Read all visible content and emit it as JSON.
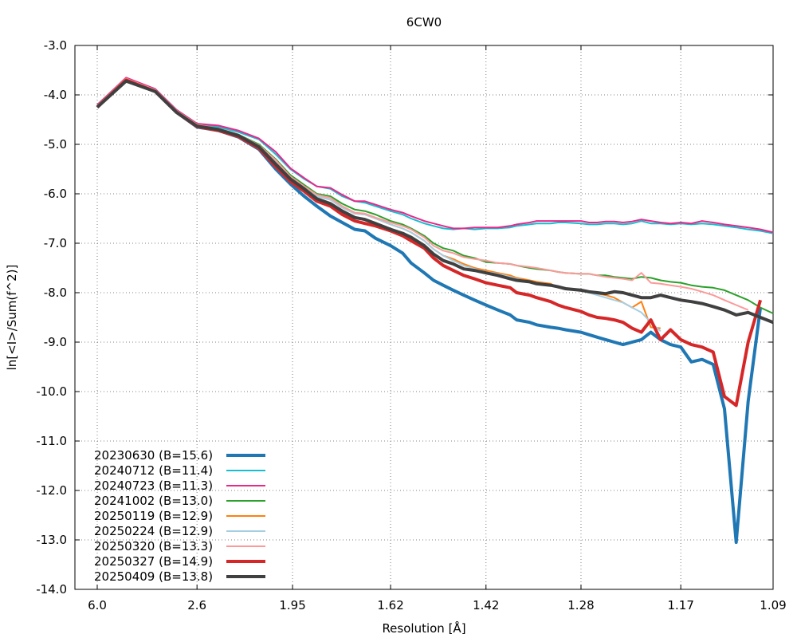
{
  "chart_data": {
    "type": "line",
    "title": "6CW0",
    "xlabel": "Resolution [Å]",
    "ylabel": "ln[<I>/Sum(f^2)]",
    "x_scale": "1/d^2",
    "xlim": [
      6.0,
      1.09
    ],
    "ylim": [
      -14.0,
      -3.0
    ],
    "x_ticks": [
      "6.0",
      "2.6",
      "1.95",
      "1.62",
      "1.42",
      "1.28",
      "1.17",
      "1.09"
    ],
    "x_tick_values": [
      6.0,
      2.6,
      1.95,
      1.62,
      1.42,
      1.28,
      1.17,
      1.09
    ],
    "y_ticks": [
      "-3.0",
      "-4.0",
      "-5.0",
      "-6.0",
      "-7.0",
      "-8.0",
      "-9.0",
      "-10.0",
      "-11.0",
      "-12.0",
      "-13.0",
      "-14.0"
    ],
    "y_tick_values": [
      -3,
      -4,
      -5,
      -6,
      -7,
      -8,
      -9,
      -10,
      -11,
      -12,
      -13,
      -14
    ],
    "grid": true,
    "legend_position": "bottom-left",
    "series": [
      {
        "name": "20230630 (B=15.6)",
        "color": "#1f77b4",
        "width": 4,
        "x": [
          6.0,
          4.0,
          3.2,
          2.85,
          2.6,
          2.4,
          2.25,
          2.12,
          2.03,
          1.96,
          1.9,
          1.85,
          1.8,
          1.76,
          1.72,
          1.69,
          1.66,
          1.62,
          1.59,
          1.57,
          1.54,
          1.52,
          1.5,
          1.48,
          1.46,
          1.44,
          1.42,
          1.4,
          1.38,
          1.37,
          1.35,
          1.34,
          1.32,
          1.31,
          1.3,
          1.28,
          1.27,
          1.26,
          1.25,
          1.24,
          1.23,
          1.22,
          1.21,
          1.2,
          1.19,
          1.18,
          1.17,
          1.16,
          1.15,
          1.14,
          1.13,
          1.12,
          1.11,
          1.1
        ],
        "y": [
          -4.25,
          -3.68,
          -3.93,
          -4.35,
          -4.65,
          -4.72,
          -4.85,
          -5.1,
          -5.5,
          -5.8,
          -6.05,
          -6.25,
          -6.45,
          -6.58,
          -6.72,
          -6.75,
          -6.9,
          -7.05,
          -7.2,
          -7.4,
          -7.6,
          -7.75,
          -7.85,
          -7.95,
          -8.05,
          -8.15,
          -8.25,
          -8.35,
          -8.45,
          -8.55,
          -8.6,
          -8.65,
          -8.7,
          -8.72,
          -8.75,
          -8.8,
          -8.85,
          -8.9,
          -8.95,
          -9.0,
          -9.05,
          -9.0,
          -8.95,
          -8.8,
          -8.95,
          -9.05,
          -9.1,
          -9.4,
          -9.35,
          -9.45,
          -10.35,
          -13.05,
          -10.2,
          -8.3
        ]
      },
      {
        "name": "20240712 (B=11.4)",
        "color": "#17becf",
        "width": 2,
        "x": [
          6.0,
          4.0,
          3.2,
          2.85,
          2.6,
          2.4,
          2.25,
          2.12,
          2.03,
          1.96,
          1.9,
          1.85,
          1.8,
          1.76,
          1.72,
          1.69,
          1.66,
          1.62,
          1.59,
          1.57,
          1.54,
          1.52,
          1.5,
          1.48,
          1.46,
          1.44,
          1.42,
          1.4,
          1.38,
          1.37,
          1.35,
          1.34,
          1.32,
          1.31,
          1.3,
          1.28,
          1.27,
          1.26,
          1.25,
          1.24,
          1.23,
          1.22,
          1.21,
          1.2,
          1.19,
          1.18,
          1.17,
          1.16,
          1.15,
          1.14,
          1.13,
          1.12,
          1.11,
          1.1,
          1.09
        ],
        "y": [
          -4.2,
          -3.66,
          -3.88,
          -4.3,
          -4.6,
          -4.65,
          -4.75,
          -4.9,
          -5.2,
          -5.5,
          -5.7,
          -5.85,
          -5.9,
          -6.05,
          -6.15,
          -6.18,
          -6.25,
          -6.35,
          -6.42,
          -6.5,
          -6.6,
          -6.65,
          -6.7,
          -6.72,
          -6.7,
          -6.72,
          -6.7,
          -6.7,
          -6.68,
          -6.65,
          -6.62,
          -6.6,
          -6.6,
          -6.58,
          -6.58,
          -6.6,
          -6.62,
          -6.62,
          -6.6,
          -6.6,
          -6.62,
          -6.6,
          -6.55,
          -6.6,
          -6.6,
          -6.62,
          -6.6,
          -6.62,
          -6.6,
          -6.62,
          -6.65,
          -6.68,
          -6.72,
          -6.75,
          -6.8
        ]
      },
      {
        "name": "20240723 (B=11.3)",
        "color": "#e7298a",
        "width": 2,
        "x": [
          6.0,
          4.0,
          3.2,
          2.85,
          2.6,
          2.4,
          2.25,
          2.12,
          2.03,
          1.96,
          1.9,
          1.85,
          1.8,
          1.76,
          1.72,
          1.69,
          1.66,
          1.62,
          1.59,
          1.57,
          1.54,
          1.52,
          1.5,
          1.48,
          1.46,
          1.44,
          1.42,
          1.4,
          1.38,
          1.37,
          1.35,
          1.34,
          1.32,
          1.31,
          1.3,
          1.28,
          1.27,
          1.26,
          1.25,
          1.24,
          1.23,
          1.22,
          1.21,
          1.2,
          1.19,
          1.18,
          1.17,
          1.16,
          1.15,
          1.14,
          1.13,
          1.12,
          1.11,
          1.1,
          1.09
        ],
        "y": [
          -4.2,
          -3.65,
          -3.88,
          -4.3,
          -4.58,
          -4.62,
          -4.72,
          -4.88,
          -5.15,
          -5.48,
          -5.68,
          -5.85,
          -5.88,
          -6.02,
          -6.15,
          -6.15,
          -6.22,
          -6.32,
          -6.38,
          -6.45,
          -6.55,
          -6.6,
          -6.65,
          -6.7,
          -6.7,
          -6.68,
          -6.68,
          -6.68,
          -6.65,
          -6.62,
          -6.58,
          -6.55,
          -6.55,
          -6.55,
          -6.55,
          -6.55,
          -6.58,
          -6.58,
          -6.56,
          -6.56,
          -6.58,
          -6.56,
          -6.52,
          -6.55,
          -6.58,
          -6.6,
          -6.58,
          -6.6,
          -6.55,
          -6.58,
          -6.62,
          -6.65,
          -6.68,
          -6.72,
          -6.78
        ]
      },
      {
        "name": "20241002 (B=13.0)",
        "color": "#2ca02c",
        "width": 2,
        "x": [
          6.0,
          4.0,
          3.2,
          2.85,
          2.6,
          2.4,
          2.25,
          2.12,
          2.03,
          1.96,
          1.9,
          1.85,
          1.8,
          1.76,
          1.72,
          1.69,
          1.66,
          1.62,
          1.59,
          1.57,
          1.54,
          1.52,
          1.5,
          1.48,
          1.46,
          1.44,
          1.42,
          1.4,
          1.38,
          1.37,
          1.35,
          1.34,
          1.32,
          1.31,
          1.3,
          1.28,
          1.27,
          1.26,
          1.25,
          1.24,
          1.23,
          1.22,
          1.21,
          1.2,
          1.19,
          1.18,
          1.17,
          1.16,
          1.15,
          1.14,
          1.13,
          1.12,
          1.11,
          1.1,
          1.09
        ],
        "y": [
          -4.22,
          -3.67,
          -3.9,
          -4.32,
          -4.6,
          -4.68,
          -4.8,
          -5.0,
          -5.3,
          -5.62,
          -5.82,
          -6.0,
          -6.05,
          -6.2,
          -6.32,
          -6.35,
          -6.42,
          -6.55,
          -6.62,
          -6.7,
          -6.85,
          -7.0,
          -7.1,
          -7.15,
          -7.25,
          -7.3,
          -7.38,
          -7.4,
          -7.42,
          -7.45,
          -7.5,
          -7.52,
          -7.55,
          -7.58,
          -7.6,
          -7.62,
          -7.62,
          -7.65,
          -7.65,
          -7.68,
          -7.7,
          -7.72,
          -7.68,
          -7.7,
          -7.75,
          -7.78,
          -7.8,
          -7.85,
          -7.88,
          -7.9,
          -7.95,
          -8.05,
          -8.15,
          -8.3,
          -8.42
        ]
      },
      {
        "name": "20250119 (B=12.9)",
        "color": "#ff7f0e",
        "width": 2,
        "x": [
          6.0,
          4.0,
          3.2,
          2.85,
          2.6,
          2.4,
          2.25,
          2.12,
          2.03,
          1.96,
          1.9,
          1.85,
          1.8,
          1.76,
          1.72,
          1.69,
          1.66,
          1.62,
          1.59,
          1.57,
          1.54,
          1.52,
          1.5,
          1.48,
          1.46,
          1.44,
          1.42,
          1.4,
          1.38,
          1.37,
          1.35,
          1.34,
          1.32,
          1.31,
          1.3,
          1.28,
          1.27,
          1.26,
          1.25,
          1.24,
          1.23,
          1.22,
          1.21,
          1.2,
          1.19
        ],
        "y": [
          -4.23,
          -3.68,
          -3.92,
          -4.33,
          -4.62,
          -4.7,
          -4.82,
          -5.05,
          -5.35,
          -5.68,
          -5.88,
          -6.05,
          -6.12,
          -6.28,
          -6.4,
          -6.42,
          -6.5,
          -6.62,
          -6.7,
          -6.78,
          -6.95,
          -7.12,
          -7.25,
          -7.32,
          -7.42,
          -7.5,
          -7.55,
          -7.6,
          -7.65,
          -7.7,
          -7.75,
          -7.78,
          -7.82,
          -7.9,
          -7.92,
          -7.95,
          -7.98,
          -8.02,
          -8.05,
          -8.1,
          -8.2,
          -8.3,
          -8.18,
          -8.7,
          -8.72
        ]
      },
      {
        "name": "20250224 (B=12.9)",
        "color": "#a6cee3",
        "width": 2,
        "x": [
          6.0,
          4.0,
          3.2,
          2.85,
          2.6,
          2.4,
          2.25,
          2.12,
          2.03,
          1.96,
          1.9,
          1.85,
          1.8,
          1.76,
          1.72,
          1.69,
          1.66,
          1.62,
          1.59,
          1.57,
          1.54,
          1.52,
          1.5,
          1.48,
          1.46,
          1.44,
          1.42,
          1.4,
          1.38,
          1.37,
          1.35,
          1.34,
          1.32,
          1.31,
          1.3,
          1.28,
          1.27,
          1.26,
          1.25,
          1.24,
          1.23,
          1.22,
          1.21,
          1.2,
          1.19
        ],
        "y": [
          -4.23,
          -3.68,
          -3.92,
          -4.33,
          -4.62,
          -4.7,
          -4.82,
          -5.05,
          -5.35,
          -5.68,
          -5.88,
          -6.05,
          -6.12,
          -6.28,
          -6.4,
          -6.42,
          -6.5,
          -6.62,
          -6.7,
          -6.78,
          -6.95,
          -7.12,
          -7.25,
          -7.35,
          -7.45,
          -7.52,
          -7.58,
          -7.62,
          -7.68,
          -7.72,
          -7.78,
          -7.82,
          -7.85,
          -7.88,
          -7.92,
          -7.95,
          -8.0,
          -8.05,
          -8.1,
          -8.15,
          -8.2,
          -8.3,
          -8.4,
          -8.6,
          -8.78
        ]
      },
      {
        "name": "20250320 (B=13.3)",
        "color": "#fb9a99",
        "width": 2,
        "x": [
          6.0,
          4.0,
          3.2,
          2.85,
          2.6,
          2.4,
          2.25,
          2.12,
          2.03,
          1.96,
          1.9,
          1.85,
          1.8,
          1.76,
          1.72,
          1.69,
          1.66,
          1.62,
          1.59,
          1.57,
          1.54,
          1.52,
          1.5,
          1.48,
          1.46,
          1.44,
          1.42,
          1.4,
          1.38,
          1.37,
          1.35,
          1.34,
          1.32,
          1.31,
          1.3,
          1.28,
          1.27,
          1.26,
          1.25,
          1.24,
          1.23,
          1.22,
          1.21,
          1.2,
          1.19,
          1.18,
          1.17,
          1.16,
          1.15,
          1.14,
          1.13,
          1.12,
          1.11
        ],
        "y": [
          -4.22,
          -3.67,
          -3.9,
          -4.32,
          -4.6,
          -4.68,
          -4.8,
          -5.02,
          -5.32,
          -5.65,
          -5.85,
          -6.02,
          -6.08,
          -6.25,
          -6.38,
          -6.4,
          -6.48,
          -6.58,
          -6.65,
          -6.72,
          -6.88,
          -7.05,
          -7.15,
          -7.2,
          -7.28,
          -7.32,
          -7.35,
          -7.4,
          -7.42,
          -7.45,
          -7.48,
          -7.5,
          -7.55,
          -7.58,
          -7.6,
          -7.62,
          -7.62,
          -7.65,
          -7.68,
          -7.7,
          -7.72,
          -7.75,
          -7.6,
          -7.8,
          -7.82,
          -7.85,
          -7.88,
          -7.92,
          -7.98,
          -8.05,
          -8.15,
          -8.25,
          -8.35
        ]
      },
      {
        "name": "20250327 (B=14.9)",
        "color": "#d62728",
        "width": 4,
        "x": [
          6.0,
          4.0,
          3.2,
          2.85,
          2.6,
          2.4,
          2.25,
          2.12,
          2.03,
          1.96,
          1.9,
          1.85,
          1.8,
          1.76,
          1.72,
          1.69,
          1.66,
          1.62,
          1.59,
          1.57,
          1.54,
          1.52,
          1.5,
          1.48,
          1.46,
          1.44,
          1.42,
          1.4,
          1.38,
          1.37,
          1.35,
          1.34,
          1.32,
          1.31,
          1.3,
          1.28,
          1.27,
          1.26,
          1.25,
          1.24,
          1.23,
          1.22,
          1.21,
          1.2,
          1.19,
          1.18,
          1.17,
          1.16,
          1.15,
          1.14,
          1.13,
          1.12,
          1.11,
          1.1
        ],
        "y": [
          -4.25,
          -3.7,
          -3.93,
          -4.35,
          -4.64,
          -4.72,
          -4.84,
          -5.08,
          -5.45,
          -5.75,
          -5.95,
          -6.15,
          -6.25,
          -6.42,
          -6.55,
          -6.6,
          -6.65,
          -6.75,
          -6.85,
          -6.95,
          -7.1,
          -7.3,
          -7.45,
          -7.55,
          -7.65,
          -7.72,
          -7.8,
          -7.85,
          -7.9,
          -8.0,
          -8.05,
          -8.1,
          -8.18,
          -8.25,
          -8.3,
          -8.38,
          -8.45,
          -8.5,
          -8.52,
          -8.55,
          -8.6,
          -8.72,
          -8.8,
          -8.55,
          -8.95,
          -8.75,
          -8.95,
          -9.05,
          -9.1,
          -9.2,
          -10.1,
          -10.28,
          -9.0,
          -8.15
        ]
      },
      {
        "name": "20250409 (B=13.8)",
        "color": "#404040",
        "width": 4,
        "x": [
          6.0,
          4.0,
          3.2,
          2.85,
          2.6,
          2.4,
          2.25,
          2.12,
          2.03,
          1.96,
          1.9,
          1.85,
          1.8,
          1.76,
          1.72,
          1.69,
          1.66,
          1.62,
          1.59,
          1.57,
          1.54,
          1.52,
          1.5,
          1.48,
          1.46,
          1.44,
          1.42,
          1.4,
          1.38,
          1.37,
          1.35,
          1.34,
          1.32,
          1.31,
          1.3,
          1.28,
          1.27,
          1.26,
          1.25,
          1.24,
          1.23,
          1.22,
          1.21,
          1.2,
          1.19,
          1.18,
          1.17,
          1.16,
          1.15,
          1.14,
          1.13,
          1.12,
          1.11,
          1.1,
          1.09
        ],
        "y": [
          -4.25,
          -3.72,
          -3.93,
          -4.35,
          -4.63,
          -4.7,
          -4.82,
          -5.05,
          -5.4,
          -5.7,
          -5.9,
          -6.1,
          -6.2,
          -6.35,
          -6.48,
          -6.52,
          -6.6,
          -6.72,
          -6.8,
          -6.88,
          -7.05,
          -7.22,
          -7.35,
          -7.42,
          -7.52,
          -7.55,
          -7.6,
          -7.65,
          -7.72,
          -7.75,
          -7.78,
          -7.82,
          -7.85,
          -7.88,
          -7.92,
          -7.95,
          -7.98,
          -8.0,
          -8.02,
          -7.98,
          -8.0,
          -8.05,
          -8.1,
          -8.1,
          -8.05,
          -8.1,
          -8.15,
          -8.18,
          -8.22,
          -8.28,
          -8.35,
          -8.45,
          -8.4,
          -8.5,
          -8.6
        ]
      }
    ]
  }
}
